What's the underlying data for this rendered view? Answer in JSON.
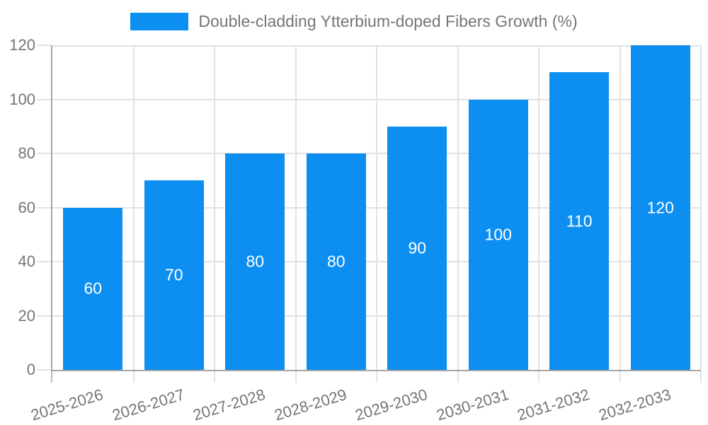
{
  "chart_data": {
    "type": "bar",
    "title": "Double-cladding Ytterbium-doped Fibers Growth (%)",
    "legend_position": "top",
    "categories": [
      "2025-2026",
      "2026-2027",
      "2027-2028",
      "2028-2029",
      "2029-2030",
      "2030-2031",
      "2031-2032",
      "2032-2033"
    ],
    "values": [
      60,
      70,
      80,
      80,
      90,
      100,
      110,
      120
    ],
    "xlabel": "",
    "ylabel": "",
    "ylim": [
      0,
      120
    ],
    "yticks": [
      0,
      20,
      40,
      60,
      80,
      100,
      120
    ],
    "grid": true,
    "bar_label_position": "center-inside"
  },
  "colors": {
    "bar": "#0D8FF2",
    "axis": "#a6a6a6",
    "grid": "#e2e2e2",
    "text": "#757575",
    "bar_label": "#ffffff",
    "background": "#ffffff"
  }
}
